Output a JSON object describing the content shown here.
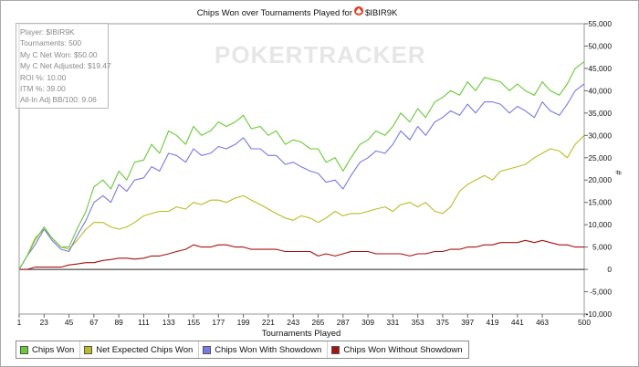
{
  "title": {
    "text": "Chips Won over Tournaments Played for",
    "player": "$IBIR9K"
  },
  "icons": {
    "player_site": "pokerstars-spade-icon"
  },
  "watermark": "POKERTRACKER",
  "stats": [
    "Player: $IBIR9K",
    "Tournaments: 500",
    "My C Net Won: $50.00",
    "My C Net Adjusted: $19.47",
    "ROI %: 10.00",
    "ITM %: 39.00",
    "All-In Adj BB/100: 9.06"
  ],
  "legend": [
    {
      "label": "Chips Won",
      "color": "#66cc33"
    },
    {
      "label": "Net Expected Chips Won",
      "color": "#bbbb22"
    },
    {
      "label": "Chips Won With Showdown",
      "color": "#7777ee"
    },
    {
      "label": "Chips Won Without Showdown",
      "color": "#aa1111"
    }
  ],
  "chart_data": {
    "type": "line",
    "xlabel": "Tournaments Played",
    "ylabel": "#",
    "xlim": [
      1,
      500
    ],
    "ylim": [
      -10000,
      55000
    ],
    "x_ticks": [
      1,
      23,
      45,
      67,
      89,
      111,
      133,
      155,
      177,
      199,
      221,
      243,
      265,
      287,
      309,
      331,
      353,
      375,
      397,
      419,
      441,
      463,
      500
    ],
    "y_ticks": [
      -10000,
      -5000,
      0,
      5000,
      10000,
      15000,
      20000,
      25000,
      30000,
      35000,
      40000,
      45000,
      50000,
      55000
    ],
    "y_tick_labels": [
      "-10,000",
      "-5,000",
      "0",
      "5,000",
      "10,000",
      "15,000",
      "20,000",
      "25,000",
      "30,000",
      "35,000",
      "40,000",
      "45,000",
      "50,000",
      "55,000"
    ],
    "x_tick_labels": [
      "1",
      "23",
      "45",
      "67",
      "89",
      "111",
      "133",
      "155",
      "177",
      "199",
      "221",
      "243",
      "265",
      "287",
      "309",
      "331",
      "353",
      "375",
      "397",
      "419",
      "441",
      "463",
      "500"
    ],
    "zero_line": true,
    "legend_position": "bottom-left",
    "series": [
      {
        "name": "Chips Won",
        "color": "#66cc33",
        "x": [
          1,
          8,
          15,
          23,
          30,
          38,
          45,
          52,
          60,
          67,
          75,
          82,
          89,
          96,
          103,
          111,
          118,
          125,
          133,
          140,
          148,
          155,
          162,
          170,
          177,
          184,
          192,
          199,
          206,
          214,
          221,
          228,
          236,
          243,
          250,
          258,
          265,
          272,
          280,
          287,
          294,
          302,
          309,
          316,
          324,
          331,
          338,
          346,
          353,
          360,
          368,
          375,
          382,
          390,
          397,
          404,
          412,
          419,
          426,
          434,
          441,
          448,
          456,
          463,
          470,
          478,
          485,
          492,
          500
        ],
        "y": [
          0,
          3000,
          6500,
          9500,
          7000,
          5000,
          5000,
          9000,
          13000,
          18500,
          20000,
          18000,
          22000,
          20000,
          24000,
          24500,
          28000,
          26000,
          31000,
          30000,
          28000,
          32000,
          30000,
          31000,
          33000,
          32000,
          33000,
          34500,
          31500,
          32000,
          30000,
          31000,
          28000,
          29000,
          28500,
          27000,
          27000,
          24000,
          25000,
          22000,
          25000,
          28000,
          29000,
          31000,
          30000,
          32000,
          35000,
          33000,
          36000,
          34000,
          37500,
          38500,
          40000,
          39000,
          42000,
          40000,
          43000,
          42500,
          42000,
          40000,
          41500,
          40000,
          39000,
          42000,
          40000,
          39000,
          41500,
          45000,
          46500
        ]
      },
      {
        "name": "Net Expected Chips Won",
        "color": "#bbbb22",
        "x": [
          1,
          8,
          15,
          23,
          30,
          38,
          45,
          52,
          60,
          67,
          75,
          82,
          89,
          96,
          103,
          111,
          118,
          125,
          133,
          140,
          148,
          155,
          162,
          170,
          177,
          184,
          192,
          199,
          206,
          214,
          221,
          228,
          236,
          243,
          250,
          258,
          265,
          272,
          280,
          287,
          294,
          302,
          309,
          316,
          324,
          331,
          338,
          346,
          353,
          360,
          368,
          375,
          382,
          390,
          397,
          404,
          412,
          419,
          426,
          434,
          441,
          448,
          456,
          463,
          470,
          478,
          485,
          492,
          500
        ],
        "y": [
          0,
          3000,
          7000,
          9000,
          7000,
          5000,
          4500,
          6500,
          9000,
          10500,
          10500,
          9500,
          9000,
          9500,
          10500,
          12000,
          12500,
          13000,
          13000,
          14000,
          13500,
          15000,
          14500,
          15500,
          15500,
          15000,
          16000,
          16500,
          15500,
          14500,
          13500,
          12500,
          11500,
          11000,
          12000,
          11500,
          10500,
          11500,
          13000,
          12000,
          12500,
          12500,
          13000,
          13500,
          14000,
          13000,
          14500,
          15000,
          14000,
          15000,
          13000,
          12500,
          14000,
          17500,
          19000,
          20000,
          21000,
          20000,
          22000,
          22500,
          23000,
          23500,
          25000,
          26000,
          27000,
          26500,
          25000,
          28000,
          30000
        ]
      },
      {
        "name": "Chips Won With Showdown",
        "color": "#7777ee",
        "x": [
          1,
          8,
          15,
          23,
          30,
          38,
          45,
          52,
          60,
          67,
          75,
          82,
          89,
          96,
          103,
          111,
          118,
          125,
          133,
          140,
          148,
          155,
          162,
          170,
          177,
          184,
          192,
          199,
          206,
          214,
          221,
          228,
          236,
          243,
          250,
          258,
          265,
          272,
          280,
          287,
          294,
          302,
          309,
          316,
          324,
          331,
          338,
          346,
          353,
          360,
          368,
          375,
          382,
          390,
          397,
          404,
          412,
          419,
          426,
          434,
          441,
          448,
          456,
          463,
          470,
          478,
          485,
          492,
          500
        ],
        "y": [
          0,
          3000,
          5500,
          9000,
          6500,
          4500,
          4000,
          7500,
          11000,
          15000,
          16500,
          15000,
          19000,
          17500,
          20000,
          20500,
          23000,
          22000,
          26000,
          25500,
          24000,
          27000,
          25500,
          26000,
          27500,
          27000,
          28000,
          29500,
          27000,
          27000,
          25500,
          25500,
          23500,
          24000,
          23000,
          22000,
          21500,
          19500,
          20000,
          18000,
          21000,
          24000,
          25000,
          26500,
          26000,
          28000,
          31000,
          29000,
          32000,
          30000,
          33000,
          34000,
          35500,
          34500,
          37000,
          35000,
          37500,
          37500,
          37000,
          35000,
          36500,
          35500,
          34000,
          37500,
          35500,
          34500,
          37000,
          40000,
          41500
        ]
      },
      {
        "name": "Chips Won Without Showdown",
        "color": "#aa1111",
        "x": [
          1,
          8,
          15,
          23,
          30,
          38,
          45,
          52,
          60,
          67,
          75,
          82,
          89,
          96,
          103,
          111,
          118,
          125,
          133,
          140,
          148,
          155,
          162,
          170,
          177,
          184,
          192,
          199,
          206,
          214,
          221,
          228,
          236,
          243,
          250,
          258,
          265,
          272,
          280,
          287,
          294,
          302,
          309,
          316,
          324,
          331,
          338,
          346,
          353,
          360,
          368,
          375,
          382,
          390,
          397,
          404,
          412,
          419,
          426,
          434,
          441,
          448,
          456,
          463,
          470,
          478,
          485,
          492,
          500
        ],
        "y": [
          0,
          0,
          500,
          500,
          500,
          500,
          1000,
          1200,
          1500,
          1500,
          2000,
          2200,
          2500,
          2500,
          2300,
          2500,
          3000,
          3000,
          3500,
          4000,
          4500,
          5500,
          5000,
          5000,
          5500,
          5500,
          5000,
          5000,
          4500,
          4500,
          4500,
          4500,
          4000,
          4000,
          4000,
          4000,
          3000,
          3500,
          3000,
          3500,
          4000,
          4000,
          4000,
          3500,
          3500,
          3500,
          3500,
          3000,
          3500,
          3500,
          4000,
          4000,
          4500,
          4500,
          5000,
          5000,
          5500,
          5500,
          6000,
          6000,
          6000,
          6500,
          6000,
          6500,
          6000,
          5500,
          5500,
          5000,
          5000
        ]
      }
    ]
  }
}
